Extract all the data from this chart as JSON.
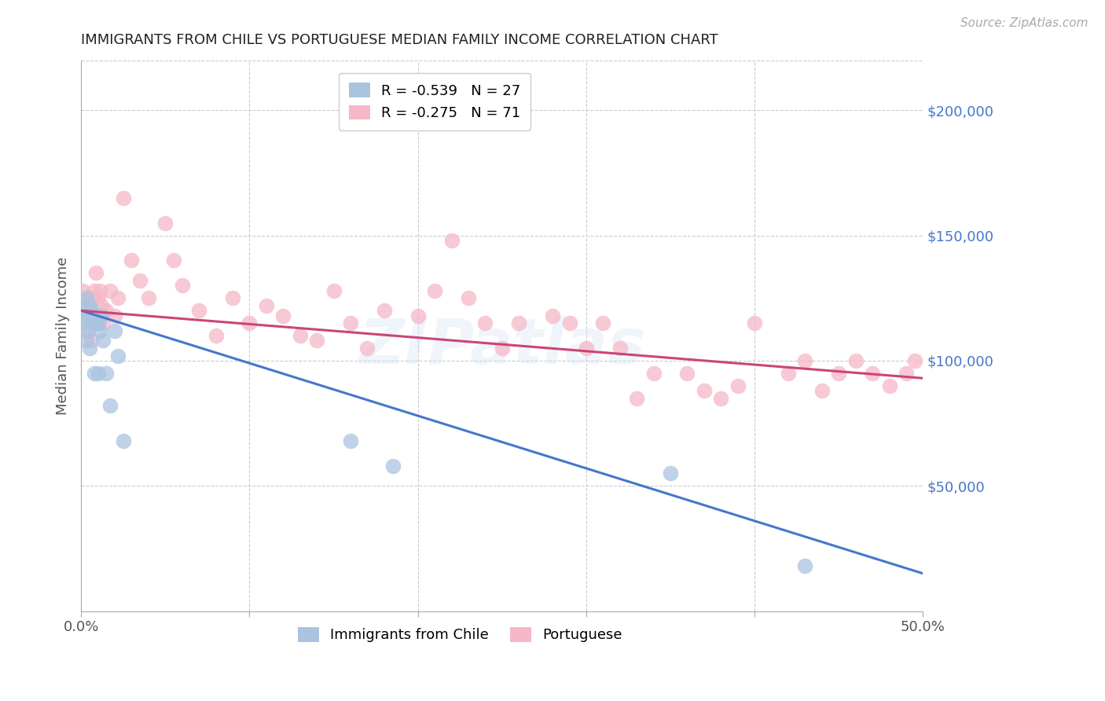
{
  "title": "IMMIGRANTS FROM CHILE VS PORTUGUESE MEDIAN FAMILY INCOME CORRELATION CHART",
  "source": "Source: ZipAtlas.com",
  "ylabel": "Median Family Income",
  "xlim": [
    0.0,
    0.5
  ],
  "ylim": [
    0,
    220000
  ],
  "xticks": [
    0.0,
    0.1,
    0.2,
    0.3,
    0.4,
    0.5
  ],
  "xticklabels": [
    "0.0%",
    "",
    "",
    "",
    "",
    "50.0%"
  ],
  "yticks_right": [
    50000,
    100000,
    150000,
    200000
  ],
  "ytick_labels_right": [
    "$50,000",
    "$100,000",
    "$150,000",
    "$200,000"
  ],
  "grid_color": "#cccccc",
  "background_color": "#ffffff",
  "watermark": "ZIPatlas",
  "chile_color": "#aac4e0",
  "chile_line_color": "#4477cc",
  "port_color": "#f5b8c8",
  "port_line_color": "#cc4477",
  "chile_R": -0.539,
  "chile_N": 27,
  "port_R": -0.275,
  "port_N": 71,
  "chile_line_x": [
    0.0,
    0.5
  ],
  "chile_line_y": [
    120000,
    15000
  ],
  "port_line_x": [
    0.0,
    0.5
  ],
  "port_line_y": [
    120000,
    93000
  ],
  "chile_x": [
    0.001,
    0.002,
    0.003,
    0.003,
    0.004,
    0.004,
    0.005,
    0.005,
    0.006,
    0.007,
    0.008,
    0.008,
    0.009,
    0.01,
    0.01,
    0.011,
    0.012,
    0.013,
    0.015,
    0.017,
    0.02,
    0.022,
    0.025,
    0.16,
    0.185,
    0.35,
    0.43
  ],
  "chile_y": [
    115000,
    120000,
    125000,
    108000,
    118000,
    112000,
    122000,
    105000,
    120000,
    118000,
    115000,
    95000,
    118000,
    115000,
    95000,
    112000,
    118000,
    108000,
    95000,
    82000,
    112000,
    102000,
    68000,
    68000,
    58000,
    55000,
    18000
  ],
  "port_x": [
    0.001,
    0.002,
    0.003,
    0.003,
    0.004,
    0.004,
    0.005,
    0.005,
    0.006,
    0.006,
    0.007,
    0.007,
    0.008,
    0.008,
    0.009,
    0.01,
    0.01,
    0.011,
    0.012,
    0.013,
    0.015,
    0.017,
    0.02,
    0.022,
    0.025,
    0.03,
    0.035,
    0.04,
    0.05,
    0.055,
    0.06,
    0.07,
    0.08,
    0.09,
    0.1,
    0.11,
    0.12,
    0.13,
    0.14,
    0.15,
    0.16,
    0.17,
    0.18,
    0.2,
    0.21,
    0.22,
    0.23,
    0.24,
    0.25,
    0.26,
    0.28,
    0.29,
    0.3,
    0.31,
    0.32,
    0.33,
    0.34,
    0.36,
    0.37,
    0.38,
    0.39,
    0.4,
    0.42,
    0.43,
    0.44,
    0.45,
    0.46,
    0.47,
    0.48,
    0.49,
    0.495
  ],
  "port_y": [
    128000,
    122000,
    118000,
    112000,
    125000,
    118000,
    122000,
    115000,
    120000,
    108000,
    125000,
    115000,
    128000,
    118000,
    135000,
    125000,
    118000,
    128000,
    122000,
    115000,
    120000,
    128000,
    118000,
    125000,
    165000,
    140000,
    132000,
    125000,
    155000,
    140000,
    130000,
    120000,
    110000,
    125000,
    115000,
    122000,
    118000,
    110000,
    108000,
    128000,
    115000,
    105000,
    120000,
    118000,
    128000,
    148000,
    125000,
    115000,
    105000,
    115000,
    118000,
    115000,
    105000,
    115000,
    105000,
    85000,
    95000,
    95000,
    88000,
    85000,
    90000,
    115000,
    95000,
    100000,
    88000,
    95000,
    100000,
    95000,
    90000,
    95000,
    100000
  ],
  "legend2_labels": [
    "Immigrants from Chile",
    "Portuguese"
  ],
  "legend2_colors": [
    "#aac4e0",
    "#f5b8c8"
  ]
}
